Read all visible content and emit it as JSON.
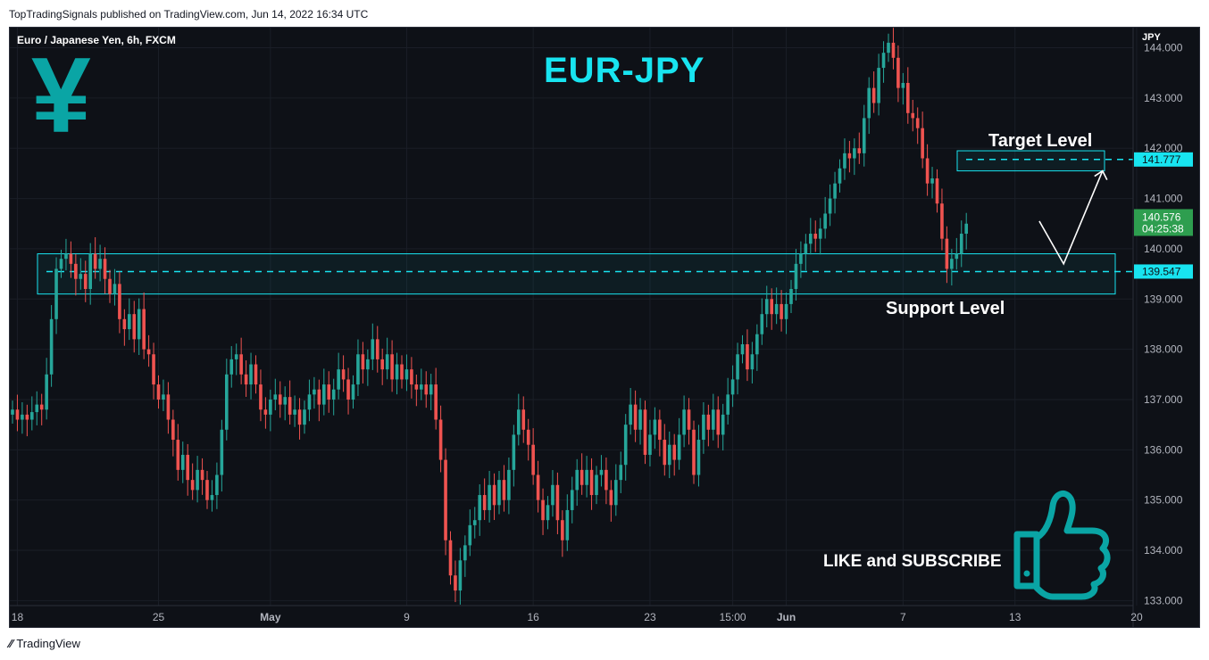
{
  "header": {
    "published": "TopTradingSignals published on TradingView.com, Jun 14, 2022 16:34 UTC"
  },
  "symbol": "Euro / Japanese Yen, 6h, FXCM",
  "title": "EUR-JPY",
  "annotations": {
    "target": "Target Level",
    "support": "Support Level",
    "cta": "LIKE and SUBSCRIBE"
  },
  "footer": {
    "brand": "TradingView"
  },
  "colors": {
    "bg": "#0e1117",
    "up": "#26a69a",
    "down": "#ef5350",
    "zone": "#18e4f0",
    "yen": "#0aa5a5"
  },
  "icons": {
    "currency": "yen-sign-icon",
    "like": "thumbs-up-icon",
    "brand": "tradingview-logo-icon"
  },
  "chart_data": {
    "type": "candlestick",
    "symbol": "EURJPY",
    "timeframe": "6h",
    "y_axis_unit": "JPY",
    "ylim": [
      132.9,
      144.4
    ],
    "yticks": [
      "133.000",
      "134.000",
      "135.000",
      "136.000",
      "137.000",
      "138.000",
      "139.000",
      "140.000",
      "141.000",
      "142.000",
      "143.000",
      "144.000"
    ],
    "xticks": [
      {
        "label": "18",
        "i": 1
      },
      {
        "label": "25",
        "i": 30
      },
      {
        "label": "May",
        "i": 53
      },
      {
        "label": "9",
        "i": 81
      },
      {
        "label": "16",
        "i": 107
      },
      {
        "label": "23",
        "i": 131
      },
      {
        "label": "15:00",
        "i": 148
      },
      {
        "label": "Jun",
        "i": 159
      },
      {
        "label": "7",
        "i": 183
      },
      {
        "label": "13",
        "i": 206
      },
      {
        "label": "20",
        "i": 231
      }
    ],
    "last_price": "140.576",
    "countdown": "04:25:38",
    "levels": [
      {
        "name": "target",
        "value": 141.777,
        "label": "141.777",
        "zone": [
          141.55,
          141.95
        ]
      },
      {
        "name": "support",
        "value": 139.547,
        "label": "139.547",
        "zone": [
          139.1,
          139.9
        ]
      }
    ],
    "projection": [
      {
        "i": 211,
        "price": 140.55
      },
      {
        "i": 216,
        "price": 139.7
      },
      {
        "i": 224,
        "price": 141.55
      }
    ],
    "closes": [
      136.8,
      136.6,
      136.7,
      136.6,
      136.75,
      136.9,
      136.8,
      137.5,
      138.6,
      139.6,
      139.8,
      139.9,
      139.7,
      139.4,
      139.5,
      139.2,
      139.9,
      139.6,
      139.8,
      139.4,
      139.1,
      139.3,
      138.6,
      138.4,
      138.7,
      138.2,
      138.8,
      138.0,
      137.9,
      137.3,
      137.0,
      137.1,
      136.6,
      136.2,
      135.6,
      135.9,
      135.4,
      135.2,
      135.6,
      135.4,
      135.0,
      135.1,
      135.5,
      136.4,
      137.5,
      137.8,
      137.9,
      137.5,
      137.3,
      137.7,
      137.3,
      136.8,
      136.7,
      137.0,
      137.1,
      136.9,
      137.05,
      136.7,
      136.8,
      136.5,
      136.8,
      137.1,
      137.2,
      136.9,
      137.3,
      137.0,
      137.2,
      137.6,
      137.4,
      137.0,
      137.3,
      137.9,
      137.6,
      137.8,
      138.2,
      137.8,
      137.6,
      137.9,
      137.4,
      137.7,
      137.4,
      137.6,
      137.3,
      137.2,
      137.3,
      137.1,
      137.3,
      136.6,
      135.8,
      134.2,
      133.5,
      133.2,
      133.8,
      134.1,
      134.5,
      134.6,
      135.1,
      134.8,
      135.3,
      134.9,
      135.4,
      135.0,
      135.6,
      136.3,
      136.8,
      136.4,
      136.1,
      135.5,
      135.0,
      134.6,
      134.9,
      135.3,
      134.6,
      134.2,
      134.8,
      135.2,
      135.6,
      135.3,
      135.6,
      135.1,
      135.5,
      135.6,
      135.2,
      134.9,
      135.4,
      135.7,
      136.5,
      136.9,
      136.4,
      136.8,
      135.9,
      136.3,
      136.6,
      136.2,
      135.7,
      136.1,
      135.8,
      136.3,
      136.8,
      136.4,
      135.5,
      136.2,
      136.7,
      136.4,
      136.8,
      136.3,
      136.7,
      137.1,
      137.4,
      137.9,
      138.1,
      137.6,
      137.9,
      138.3,
      138.7,
      139.0,
      138.7,
      138.9,
      138.6,
      138.9,
      139.2,
      139.7,
      139.9,
      140.1,
      140.3,
      140.2,
      140.4,
      140.7,
      141.0,
      141.3,
      141.6,
      141.9,
      141.8,
      142.0,
      141.9,
      142.6,
      143.2,
      142.9,
      143.6,
      143.9,
      144.1,
      143.8,
      143.2,
      143.3,
      142.7,
      142.6,
      142.4,
      141.8,
      141.3,
      141.4,
      140.9,
      140.2,
      139.6,
      139.8,
      139.9,
      140.3,
      140.5
    ]
  }
}
